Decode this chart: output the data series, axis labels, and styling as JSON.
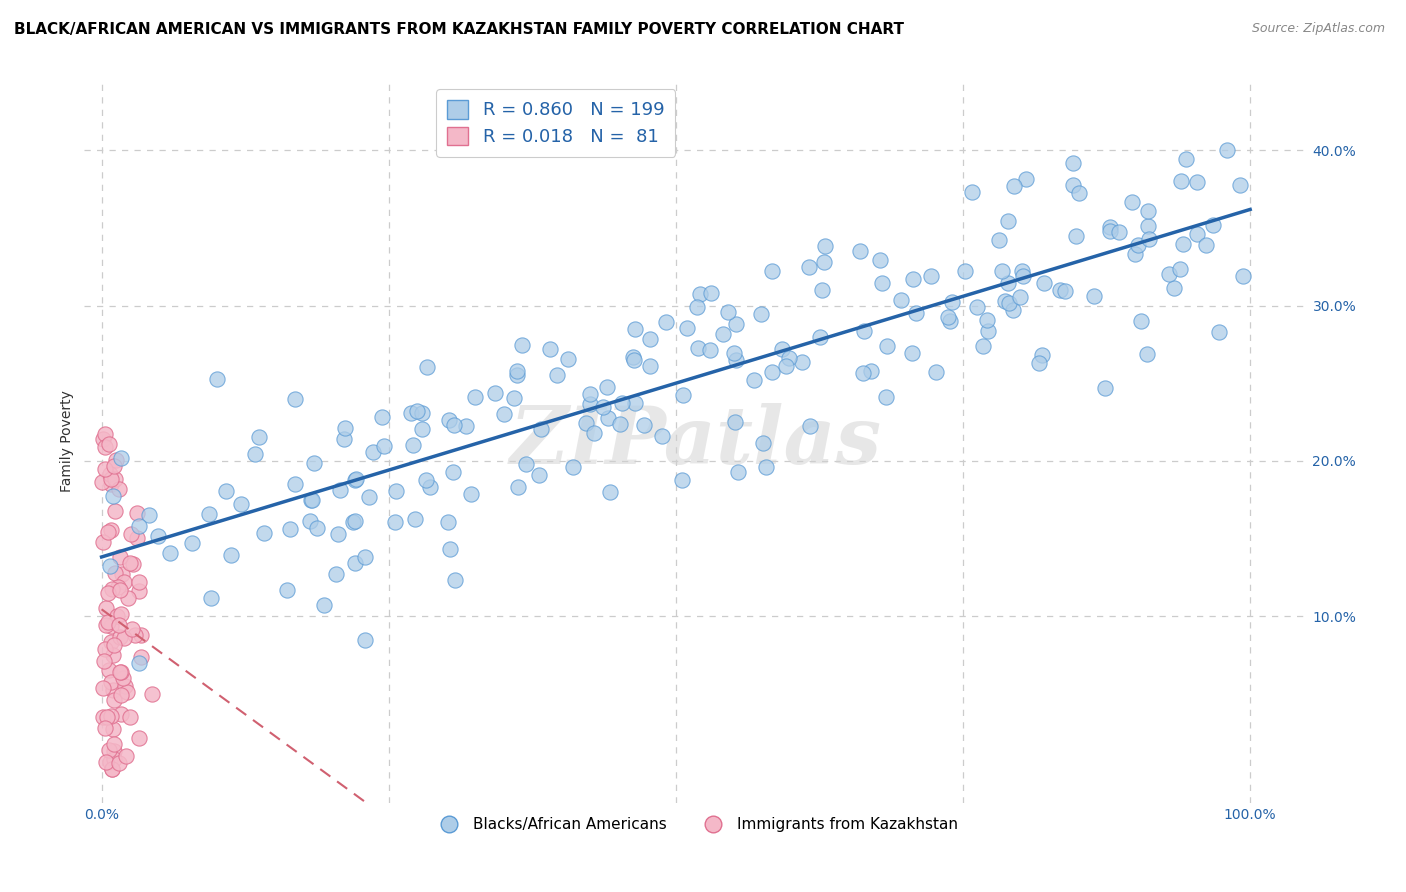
{
  "title": "BLACK/AFRICAN AMERICAN VS IMMIGRANTS FROM KAZAKHSTAN FAMILY POVERTY CORRELATION CHART",
  "source": "Source: ZipAtlas.com",
  "ylabel": "Family Poverty",
  "watermark": "ZIPatlas",
  "blue_R": 0.86,
  "blue_N": 199,
  "pink_R": 0.018,
  "pink_N": 81,
  "blue_scatter_color": "#aecde8",
  "blue_edge_color": "#5b9bd5",
  "pink_scatter_color": "#f4b8c8",
  "pink_edge_color": "#e07090",
  "blue_line_color": "#2563a8",
  "pink_line_color": "#d06070",
  "legend_label_blue": "Blacks/African Americans",
  "legend_label_pink": "Immigrants from Kazakhstan",
  "y_ticks_right": [
    0.1,
    0.2,
    0.3,
    0.4
  ],
  "y_tick_labels_right": [
    "10.0%",
    "20.0%",
    "30.0%",
    "40.0%"
  ],
  "xlim": [
    -0.015,
    1.05
  ],
  "ylim": [
    -0.02,
    0.445
  ],
  "grid_color": "#cccccc",
  "background_color": "#ffffff",
  "title_fontsize": 11,
  "axis_label_fontsize": 10,
  "tick_fontsize": 10,
  "legend_R_N_color": "#2563a8",
  "seed": 7
}
